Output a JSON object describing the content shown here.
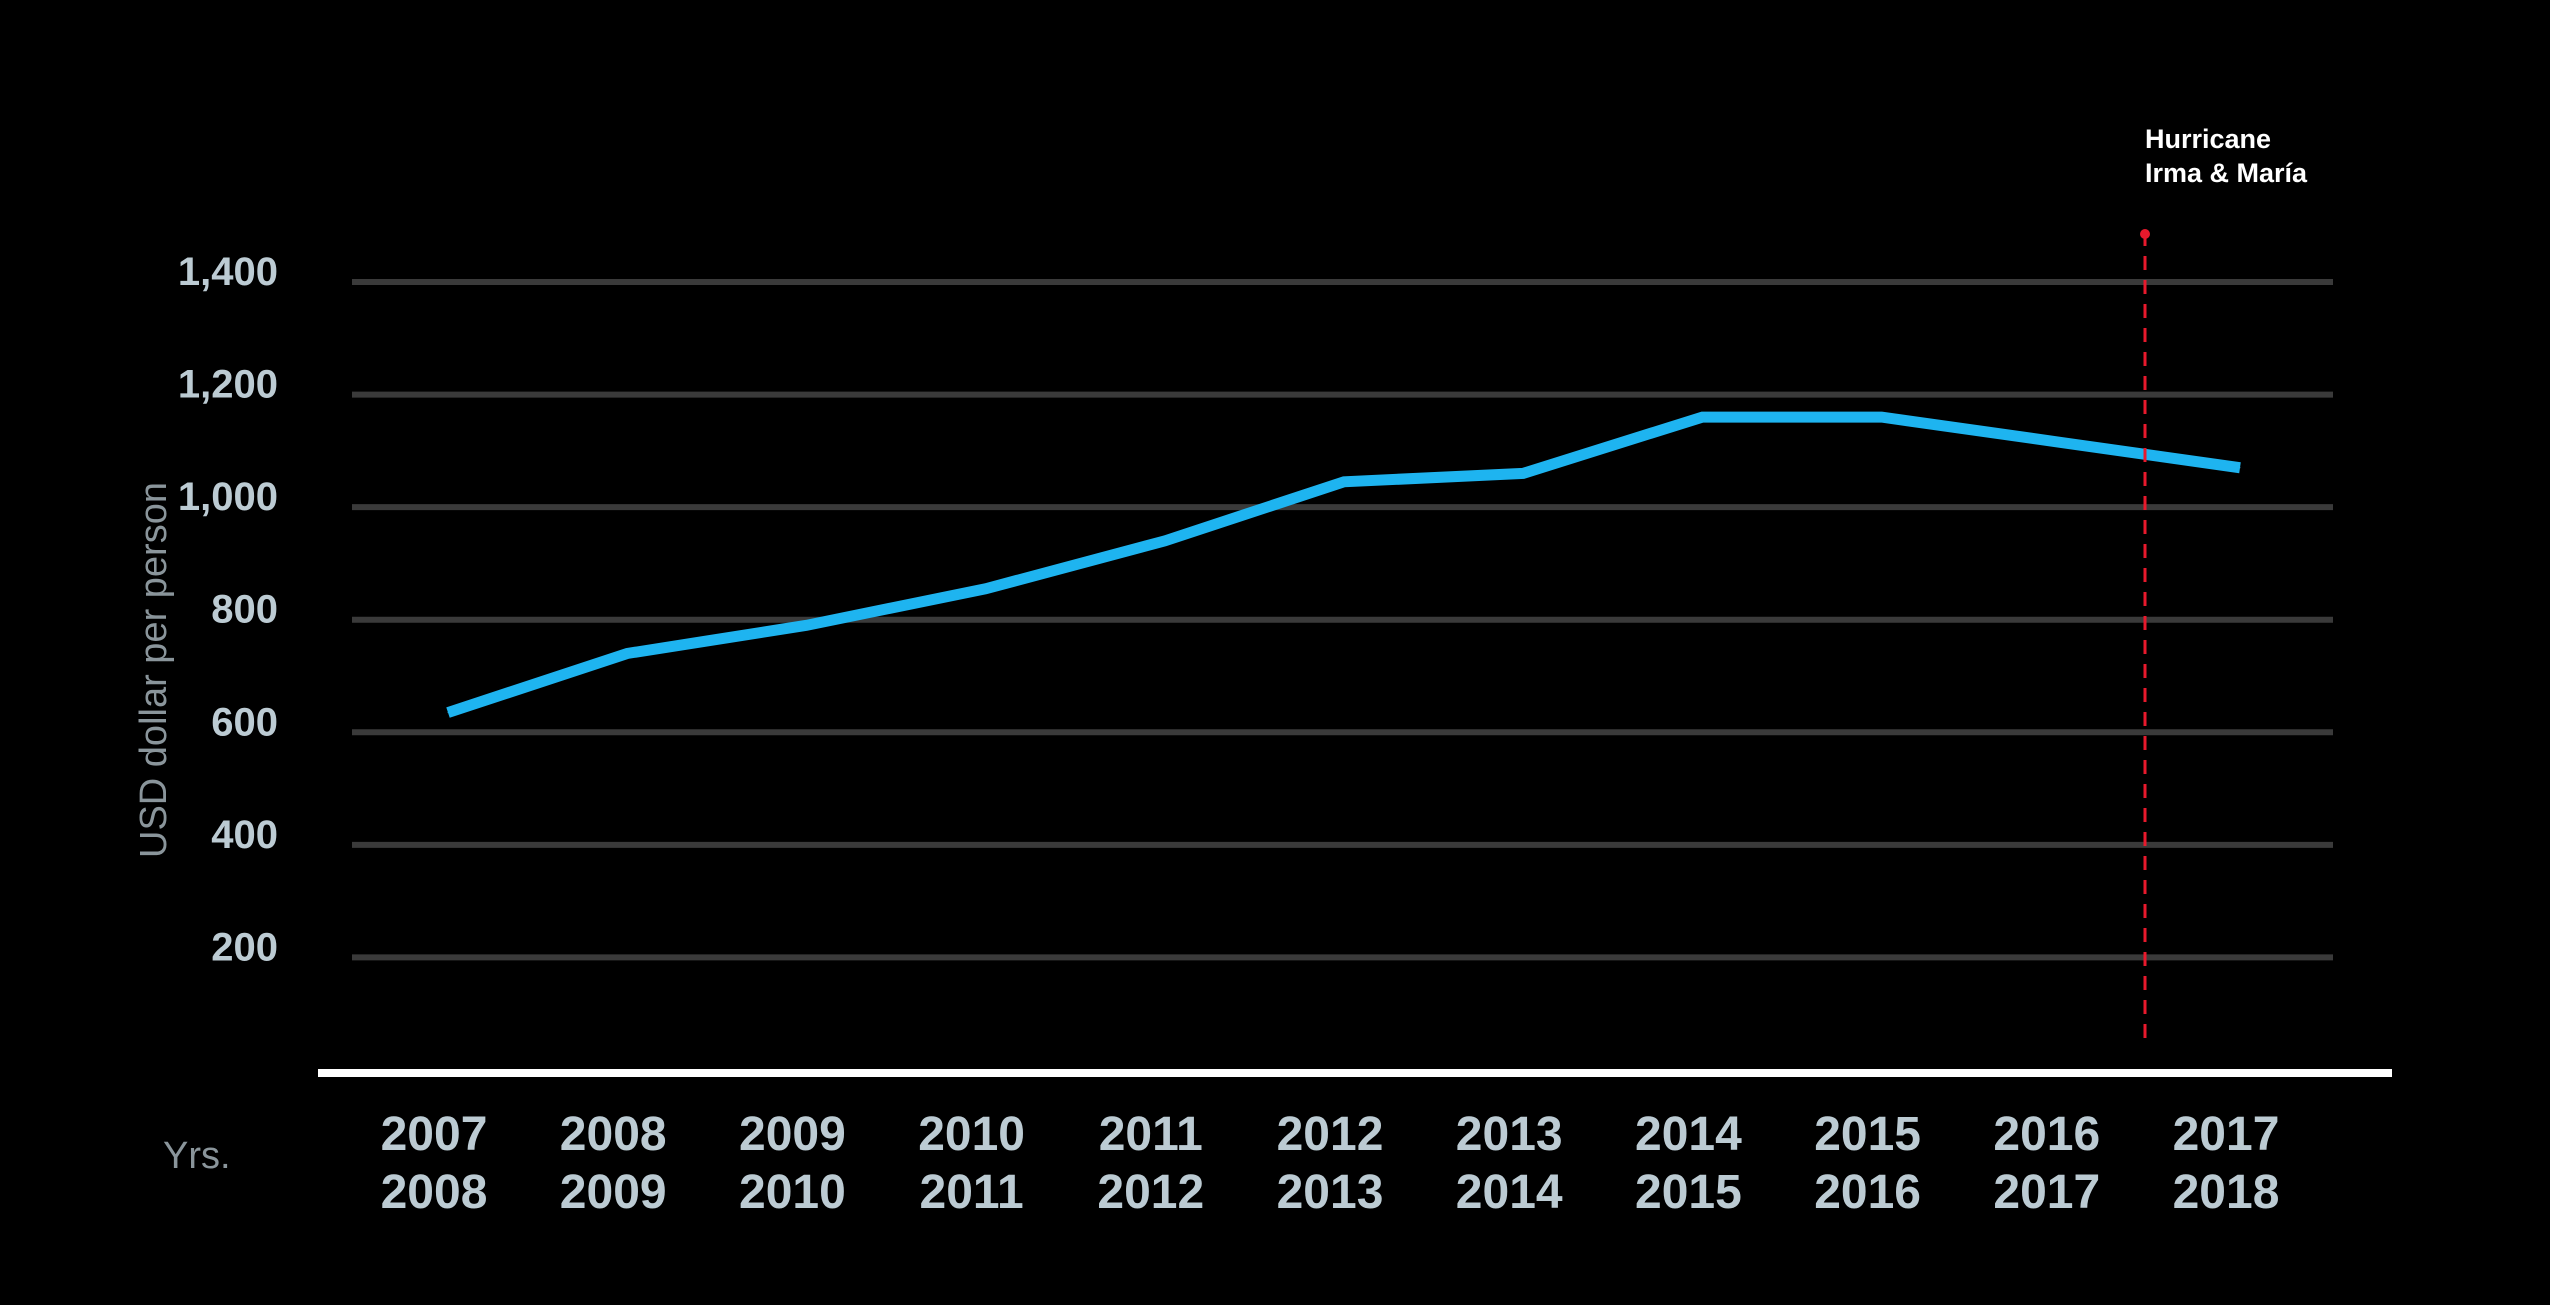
{
  "chart_data": {
    "type": "line",
    "title": "",
    "ylabel": "USD dollar per person",
    "xlabel": "Yrs.",
    "ylim": [
      0,
      1400
    ],
    "yticks": [
      200,
      400,
      600,
      800,
      1000,
      1200,
      1400
    ],
    "ytick_labels": [
      "200",
      "400",
      "600",
      "800",
      "1,000",
      "1,200",
      "1,400"
    ],
    "categories": [
      [
        "2007",
        "2008"
      ],
      [
        "2008",
        "2009"
      ],
      [
        "2009",
        "2010"
      ],
      [
        "2010",
        "2011"
      ],
      [
        "2011",
        "2012"
      ],
      [
        "2012",
        "2013"
      ],
      [
        "2013",
        "2014"
      ],
      [
        "2014",
        "2015"
      ],
      [
        "2015",
        "2016"
      ],
      [
        "2016",
        "2017"
      ],
      [
        "2017",
        "2018"
      ]
    ],
    "series": [
      {
        "color": "#1eb4f0",
        "values": [
          635,
          740,
          790,
          855,
          940,
          1045,
          1060,
          1160,
          1160,
          1115,
          1070
        ]
      }
    ],
    "grid": true,
    "annotations": [
      {
        "text_lines": [
          "Hurricane",
          "Irma & María"
        ],
        "type": "vertical-marker",
        "between_categories": [
          "2016–2017",
          "2017–2018"
        ],
        "color": "#e8192c"
      }
    ],
    "colors": {
      "background": "#000000",
      "gridline": "#3a3a3a",
      "baseline": "#ffffff",
      "tick_label": "#bccbd3",
      "axis_title": "#8a959b",
      "annotation_text": "#ffffff"
    }
  }
}
